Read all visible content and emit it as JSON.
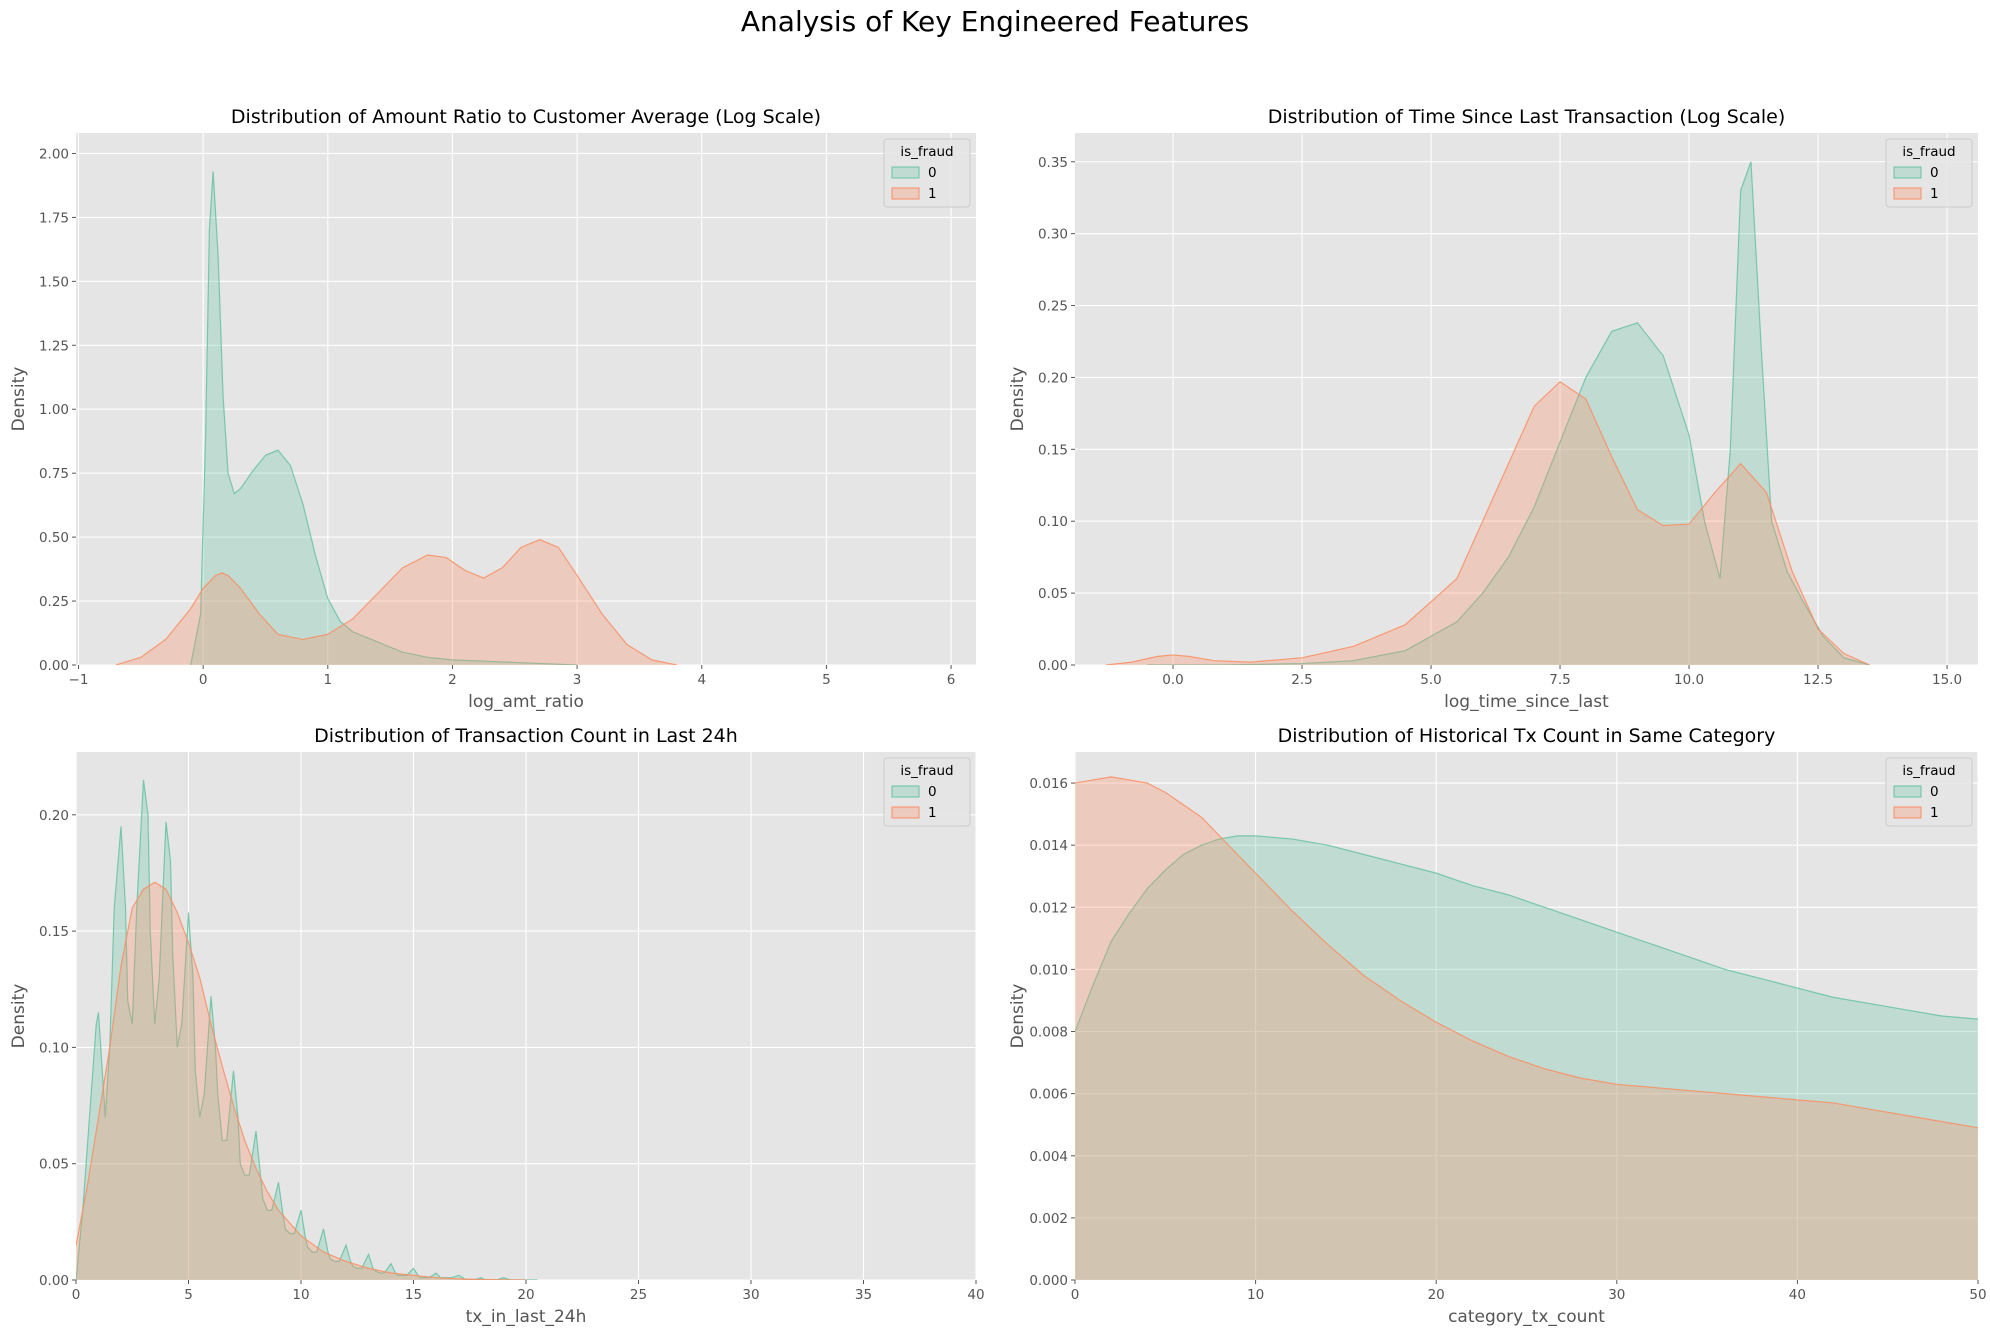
{
  "figure": {
    "suptitle": "Analysis of Key Engineered Features",
    "background": "#ffffff",
    "panel_background": "#e5e5e5",
    "grid_color": "#ffffff",
    "series_colors": {
      "0": "#66c2a5",
      "1": "#fc8d62"
    }
  },
  "chart_data": [
    {
      "type": "area",
      "subtype": "kde",
      "title": "Distribution of Amount Ratio to Customer Average (Log Scale)",
      "xlabel": "log_amt_ratio",
      "ylabel": "Density",
      "xlim": [
        -1.02,
        6.2
      ],
      "ylim": [
        0,
        2.08
      ],
      "xticks": [
        -1,
        0,
        1,
        2,
        3,
        4,
        5,
        6
      ],
      "xtick_labels": [
        "−1",
        "0",
        "1",
        "2",
        "3",
        "4",
        "5",
        "6"
      ],
      "yticks": [
        0,
        0.25,
        0.5,
        0.75,
        1.0,
        1.25,
        1.5,
        1.75,
        2.0
      ],
      "ytick_labels": [
        "0.00",
        "0.25",
        "0.50",
        "0.75",
        "1.00",
        "1.25",
        "1.50",
        "1.75",
        "2.00"
      ],
      "grid": true,
      "legend": {
        "title": "is_fraud",
        "placement": "top-right",
        "entries": [
          "0",
          "1"
        ]
      },
      "series": [
        {
          "name": "0",
          "color": "#66c2a5",
          "x": [
            -0.1,
            -0.02,
            0.02,
            0.05,
            0.08,
            0.12,
            0.16,
            0.2,
            0.25,
            0.3,
            0.4,
            0.5,
            0.6,
            0.7,
            0.8,
            0.9,
            1.0,
            1.1,
            1.2,
            1.4,
            1.6,
            1.8,
            2.0,
            2.5,
            3.0
          ],
          "y": [
            0,
            0.2,
            0.9,
            1.7,
            1.93,
            1.6,
            1.05,
            0.75,
            0.67,
            0.69,
            0.76,
            0.82,
            0.84,
            0.78,
            0.63,
            0.43,
            0.26,
            0.17,
            0.13,
            0.09,
            0.05,
            0.03,
            0.02,
            0.01,
            0
          ]
        },
        {
          "name": "1",
          "color": "#fc8d62",
          "x": [
            -0.7,
            -0.5,
            -0.3,
            -0.1,
            0.0,
            0.1,
            0.15,
            0.2,
            0.3,
            0.45,
            0.6,
            0.8,
            1.0,
            1.2,
            1.4,
            1.6,
            1.8,
            1.95,
            2.1,
            2.25,
            2.4,
            2.55,
            2.7,
            2.85,
            3.0,
            3.2,
            3.4,
            3.6,
            3.8
          ],
          "y": [
            0,
            0.03,
            0.1,
            0.22,
            0.3,
            0.35,
            0.36,
            0.35,
            0.3,
            0.2,
            0.12,
            0.1,
            0.12,
            0.18,
            0.28,
            0.38,
            0.43,
            0.42,
            0.37,
            0.34,
            0.38,
            0.46,
            0.49,
            0.46,
            0.35,
            0.2,
            0.08,
            0.02,
            0
          ]
        }
      ]
    },
    {
      "type": "area",
      "subtype": "kde",
      "title": "Distribution of Time Since Last Transaction (Log Scale)",
      "xlabel": "log_time_since_last",
      "ylabel": "Density",
      "xlim": [
        -1.9,
        15.6
      ],
      "ylim": [
        0,
        0.37
      ],
      "xticks": [
        0,
        2.5,
        5,
        7.5,
        10,
        12.5,
        15
      ],
      "xtick_labels": [
        "0.0",
        "2.5",
        "5.0",
        "7.5",
        "10.0",
        "12.5",
        "15.0"
      ],
      "yticks": [
        0,
        0.05,
        0.1,
        0.15,
        0.2,
        0.25,
        0.3,
        0.35
      ],
      "ytick_labels": [
        "0.00",
        "0.05",
        "0.10",
        "0.15",
        "0.20",
        "0.25",
        "0.30",
        "0.35"
      ],
      "grid": true,
      "legend": {
        "title": "is_fraud",
        "placement": "top-right",
        "entries": [
          "0",
          "1"
        ]
      },
      "series": [
        {
          "name": "0",
          "color": "#66c2a5",
          "x": [
            -0.5,
            1,
            2.5,
            3.5,
            4.5,
            5.5,
            6,
            6.5,
            7,
            7.5,
            8,
            8.5,
            9,
            9.5,
            10,
            10.3,
            10.6,
            10.8,
            11,
            11.2,
            11.4,
            11.6,
            11.9,
            12.2,
            12.6,
            13,
            13.5
          ],
          "y": [
            0,
            0,
            0.001,
            0.003,
            0.01,
            0.03,
            0.05,
            0.075,
            0.11,
            0.155,
            0.2,
            0.232,
            0.238,
            0.215,
            0.16,
            0.1,
            0.06,
            0.15,
            0.33,
            0.35,
            0.22,
            0.1,
            0.065,
            0.045,
            0.02,
            0.005,
            0
          ]
        },
        {
          "name": "1",
          "color": "#fc8d62",
          "x": [
            -1.3,
            -0.8,
            -0.3,
            0,
            0.3,
            0.8,
            1.5,
            2.5,
            3.5,
            4.5,
            5.5,
            6.5,
            7,
            7.5,
            8,
            8.5,
            9,
            9.5,
            10,
            10.5,
            11,
            11.5,
            12,
            12.5,
            13,
            13.5
          ],
          "y": [
            0,
            0.002,
            0.006,
            0.007,
            0.006,
            0.003,
            0.002,
            0.005,
            0.013,
            0.028,
            0.06,
            0.14,
            0.18,
            0.197,
            0.185,
            0.145,
            0.108,
            0.097,
            0.098,
            0.12,
            0.14,
            0.12,
            0.065,
            0.025,
            0.008,
            0
          ]
        }
      ]
    },
    {
      "type": "area",
      "subtype": "kde",
      "title": "Distribution of Transaction Count in Last 24h",
      "xlabel": "tx_in_last_24h",
      "ylabel": "Density",
      "xlim": [
        0,
        40
      ],
      "ylim": [
        0,
        0.227
      ],
      "xticks": [
        0,
        5,
        10,
        15,
        20,
        25,
        30,
        35,
        40
      ],
      "xtick_labels": [
        "0",
        "5",
        "10",
        "15",
        "20",
        "25",
        "30",
        "35",
        "40"
      ],
      "yticks": [
        0,
        0.05,
        0.1,
        0.15,
        0.2
      ],
      "ytick_labels": [
        "0.00",
        "0.05",
        "0.10",
        "0.15",
        "0.20"
      ],
      "grid": true,
      "legend": {
        "title": "is_fraud",
        "placement": "top-right",
        "entries": [
          "0",
          "1"
        ]
      },
      "series": [
        {
          "name": "0",
          "color": "#66c2a5",
          "x": [
            0,
            0.3,
            0.6,
            0.9,
            1.0,
            1.1,
            1.3,
            1.5,
            1.7,
            2.0,
            2.2,
            2.3,
            2.5,
            2.7,
            3.0,
            3.2,
            3.3,
            3.5,
            3.7,
            4.0,
            4.2,
            4.3,
            4.5,
            4.7,
            5.0,
            5.2,
            5.3,
            5.5,
            5.7,
            6.0,
            6.2,
            6.3,
            6.5,
            6.7,
            7.0,
            7.2,
            7.3,
            7.5,
            7.7,
            8.0,
            8.2,
            8.3,
            8.5,
            8.7,
            9.0,
            9.2,
            9.3,
            9.5,
            9.7,
            10.0,
            10.2,
            10.3,
            10.5,
            10.7,
            11.0,
            11.2,
            11.3,
            11.5,
            11.7,
            12.0,
            12.2,
            12.3,
            12.5,
            12.7,
            13.0,
            13.2,
            13.3,
            13.5,
            13.7,
            14.0,
            14.2,
            14.3,
            14.5,
            14.7,
            15.0,
            15.2,
            15.3,
            15.5,
            15.7,
            16.0,
            16.2,
            16.3,
            16.5,
            16.7,
            17.0,
            17.2,
            17.3,
            17.5,
            17.7,
            18.0,
            18.2,
            18.3,
            18.5,
            18.7,
            19.0,
            19.3,
            19.7,
            20.5
          ],
          "y": [
            0,
            0.03,
            0.07,
            0.11,
            0.115,
            0.1,
            0.07,
            0.1,
            0.16,
            0.195,
            0.16,
            0.12,
            0.11,
            0.16,
            0.215,
            0.2,
            0.15,
            0.11,
            0.13,
            0.197,
            0.18,
            0.14,
            0.1,
            0.11,
            0.158,
            0.13,
            0.09,
            0.07,
            0.08,
            0.122,
            0.1,
            0.08,
            0.06,
            0.06,
            0.09,
            0.07,
            0.05,
            0.045,
            0.045,
            0.064,
            0.045,
            0.035,
            0.03,
            0.03,
            0.042,
            0.028,
            0.022,
            0.02,
            0.02,
            0.03,
            0.018,
            0.014,
            0.012,
            0.012,
            0.022,
            0.012,
            0.009,
            0.008,
            0.008,
            0.015,
            0.008,
            0.006,
            0.005,
            0.005,
            0.011,
            0.005,
            0.004,
            0.003,
            0.003,
            0.007,
            0.003,
            0.002,
            0.002,
            0.002,
            0.005,
            0.002,
            0.001,
            0.001,
            0.001,
            0.003,
            0.001,
            0.001,
            0.001,
            0.001,
            0.002,
            0.001,
            0,
            0,
            0,
            0.001,
            0,
            0,
            0,
            0,
            0.001,
            0,
            0,
            0
          ]
        },
        {
          "name": "1",
          "color": "#fc8d62",
          "x": [
            0,
            0.5,
            1,
            1.5,
            2,
            2.5,
            3,
            3.5,
            4,
            4.5,
            5,
            5.5,
            6,
            6.5,
            7,
            7.5,
            8,
            8.5,
            9,
            10,
            11,
            12,
            13,
            14,
            15,
            16,
            17,
            18,
            20
          ],
          "y": [
            0.015,
            0.04,
            0.07,
            0.1,
            0.135,
            0.16,
            0.168,
            0.171,
            0.168,
            0.158,
            0.145,
            0.13,
            0.11,
            0.092,
            0.075,
            0.06,
            0.048,
            0.038,
            0.03,
            0.019,
            0.012,
            0.008,
            0.005,
            0.003,
            0.002,
            0.001,
            0.0005,
            0.0002,
            0
          ]
        }
      ]
    },
    {
      "type": "area",
      "subtype": "kde",
      "title": "Distribution of Historical Tx Count in Same Category",
      "xlabel": "category_tx_count",
      "ylabel": "Density",
      "xlim": [
        0,
        50
      ],
      "ylim": [
        0,
        0.017
      ],
      "xticks": [
        0,
        10,
        20,
        30,
        40,
        50
      ],
      "xtick_labels": [
        "0",
        "10",
        "20",
        "30",
        "40",
        "50"
      ],
      "yticks": [
        0,
        0.002,
        0.004,
        0.006,
        0.008,
        0.01,
        0.012,
        0.014,
        0.016
      ],
      "ytick_labels": [
        "0.000",
        "0.002",
        "0.004",
        "0.006",
        "0.008",
        "0.010",
        "0.012",
        "0.014",
        "0.016"
      ],
      "grid": true,
      "legend": {
        "title": "is_fraud",
        "placement": "top-right",
        "entries": [
          "0",
          "1"
        ]
      },
      "series": [
        {
          "name": "0",
          "color": "#66c2a5",
          "x": [
            0,
            1,
            2,
            3,
            4,
            5,
            6,
            7,
            8,
            9,
            10,
            12,
            14,
            16,
            18,
            20,
            22,
            24,
            26,
            28,
            30,
            32,
            34,
            36,
            38,
            40,
            42,
            44,
            46,
            48,
            50
          ],
          "y": [
            0.008,
            0.0095,
            0.0109,
            0.0118,
            0.0126,
            0.0132,
            0.0137,
            0.014,
            0.0142,
            0.0143,
            0.0143,
            0.0142,
            0.014,
            0.0137,
            0.0134,
            0.0131,
            0.0127,
            0.0124,
            0.012,
            0.0116,
            0.0112,
            0.0108,
            0.0104,
            0.01,
            0.0097,
            0.0094,
            0.0091,
            0.0089,
            0.0087,
            0.0085,
            0.0084
          ]
        },
        {
          "name": "1",
          "color": "#fc8d62",
          "x": [
            0,
            1,
            2,
            3,
            4,
            5,
            6,
            7,
            8,
            9,
            10,
            12,
            14,
            16,
            18,
            20,
            22,
            24,
            26,
            28,
            30,
            32,
            34,
            36,
            38,
            40,
            42,
            44,
            46,
            48,
            50
          ],
          "y": [
            0.016,
            0.0161,
            0.0162,
            0.0161,
            0.016,
            0.0157,
            0.0153,
            0.0149,
            0.0143,
            0.0137,
            0.0131,
            0.0119,
            0.0108,
            0.0098,
            0.009,
            0.0083,
            0.0077,
            0.0072,
            0.0068,
            0.0065,
            0.0063,
            0.0062,
            0.0061,
            0.006,
            0.0059,
            0.0058,
            0.0057,
            0.0055,
            0.0053,
            0.0051,
            0.0049
          ]
        }
      ]
    }
  ]
}
